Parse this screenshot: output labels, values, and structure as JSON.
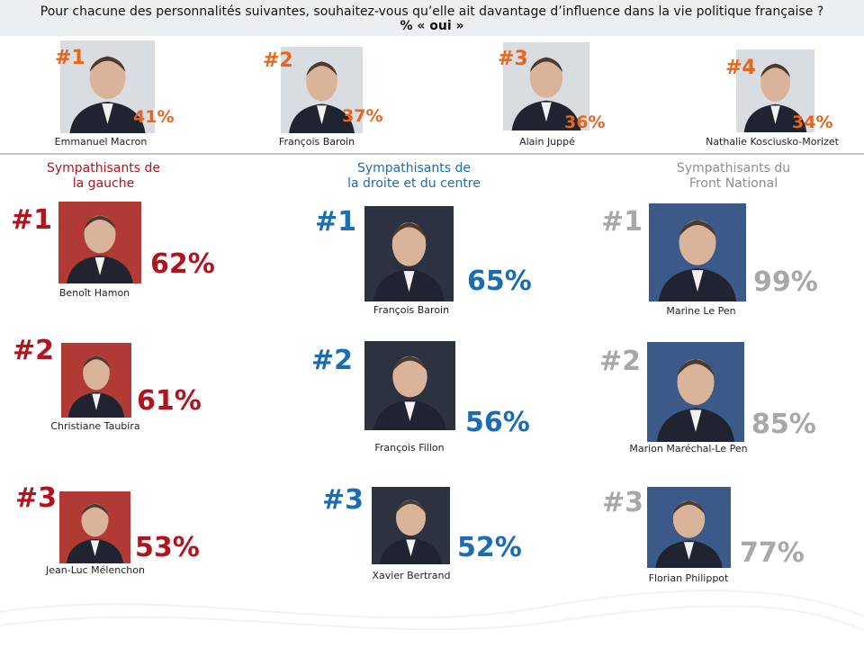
{
  "question": "Pour chacune des personnalités suivantes, souhaitez-vous qu’elle ait davantage d’influence dans la vie politique française ?",
  "subtitle": "% « oui »",
  "colors": {
    "overall": "#e8651a",
    "gauche": "#b0141e",
    "droite": "#1a6db3",
    "fn": "#a8a8a8"
  },
  "chart_data": [
    {
      "type": "bar",
      "title": "",
      "ylabel": "% « oui »",
      "categories": [
        "Emmanuel Macron",
        "François Baroin",
        "Alain Juppé",
        "Nathalie Kosciusko-Morizet"
      ],
      "ranks": [
        "#1",
        "#2",
        "#3",
        "#4"
      ],
      "values": [
        41,
        37,
        36,
        34
      ]
    },
    {
      "type": "bar",
      "title": "Sympathisants de la gauche",
      "categories": [
        "Benoît Hamon",
        "Christiane Taubira",
        "Jean-Luc Mélenchon"
      ],
      "ranks": [
        "#1",
        "#2",
        "#3"
      ],
      "values": [
        62,
        61,
        53
      ]
    },
    {
      "type": "bar",
      "title": "Sympathisants de la droite et du centre",
      "categories": [
        "François Baroin",
        "François Fillon",
        "Xavier Bertrand"
      ],
      "ranks": [
        "#1",
        "#2",
        "#3"
      ],
      "values": [
        65,
        56,
        52
      ]
    },
    {
      "type": "bar",
      "title": "Sympathisants du Front National",
      "categories": [
        "Marine Le Pen",
        "Marion Maréchal-Le Pen",
        "Florian Philippot"
      ],
      "ranks": [
        "#1",
        "#2",
        "#3"
      ],
      "values": [
        99,
        85,
        77
      ]
    }
  ],
  "groups": {
    "gauche": {
      "title_line1": "Sympathisants de",
      "title_line2": "la gauche"
    },
    "droite": {
      "title_line1": "Sympathisants de",
      "title_line2": "la droite et du centre"
    },
    "fn": {
      "title_line1": "Sympathisants du",
      "title_line2": "Front National"
    }
  }
}
